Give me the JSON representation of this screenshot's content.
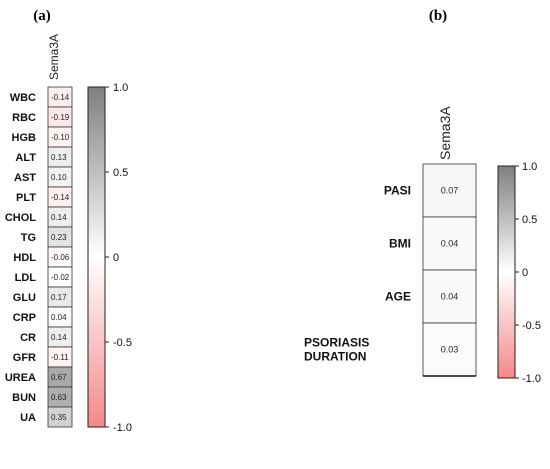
{
  "panel_labels": {
    "a": "(a)",
    "b": "(b)"
  },
  "colors": {
    "negative": "#f4888a",
    "zero": "#ffffff",
    "positive": "#7f7f7f"
  },
  "chart_data": [
    {
      "type": "heatmap",
      "panel": "(a)",
      "column": "Sema3A",
      "rows": [
        "WBC",
        "RBC",
        "HGB",
        "ALT",
        "AST",
        "PLT",
        "CHOL",
        "TG",
        "HDL",
        "LDL",
        "GLU",
        "CRP",
        "CR",
        "GFR",
        "UREA",
        "BUN",
        "UA"
      ],
      "values": [
        -0.14,
        -0.19,
        -0.1,
        0.13,
        0.1,
        -0.14,
        0.14,
        0.23,
        -0.06,
        -0.02,
        0.17,
        0.04,
        0.14,
        -0.11,
        0.67,
        0.63,
        0.35
      ],
      "labels": [
        "-0.14",
        "-0.19",
        "-0.10",
        "0.13",
        "0.10",
        "-0.14",
        "0.14",
        "0.23",
        "-0.06",
        "-0.02",
        "0.17",
        "0.04",
        "0.14",
        "-0.11",
        "0.67",
        "0.63",
        "0.35"
      ],
      "colorbar": {
        "range": [
          -1.0,
          1.0
        ],
        "ticks": [
          "1.0",
          "0.5",
          "0",
          "-0.5",
          "-1.0"
        ]
      }
    },
    {
      "type": "heatmap",
      "panel": "(b)",
      "column": "Sema3A",
      "rows": [
        "PASI",
        "BMI",
        "AGE",
        "PSORIASIS DURATION"
      ],
      "values": [
        0.07,
        0.04,
        0.04,
        0.03
      ],
      "labels": [
        "0.07",
        "0.04",
        "0.04",
        "0.03"
      ],
      "colorbar": {
        "range": [
          -1.0,
          1.0
        ],
        "ticks": [
          "1.0",
          "0.5",
          "0",
          "-0.5",
          "-1.0"
        ]
      }
    }
  ]
}
